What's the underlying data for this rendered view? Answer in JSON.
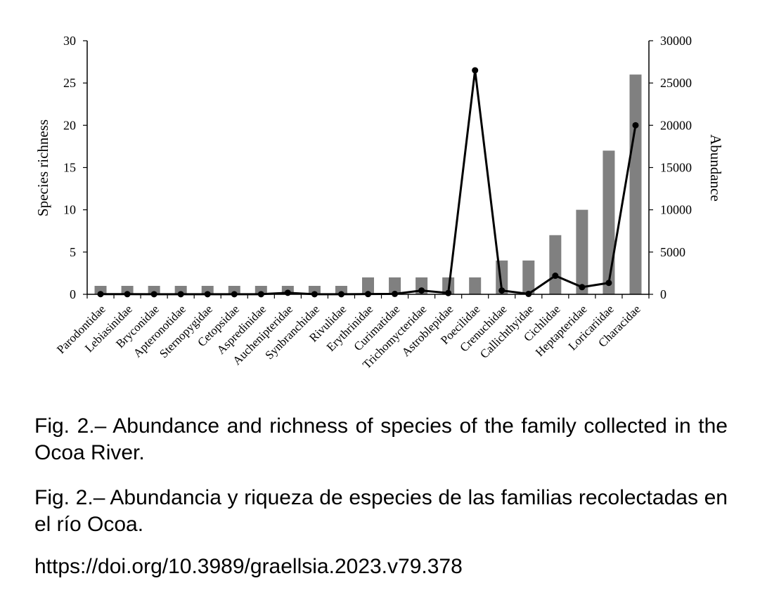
{
  "chart_data": {
    "type": "bar",
    "categories": [
      "Parodontidae",
      "Lebiasinidae",
      "Bryconidae",
      "Apteronotidae",
      "Sternopygidae",
      "Cetopsidae",
      "Aspredinidae",
      "Auchenipteridae",
      "Synbranchidae",
      "Rivulidae",
      "Erythrinidae",
      "Curimatidae",
      "Trichomycteridae",
      "Astroblepidae",
      "Poecilidae",
      "Crenuchidae",
      "Callichthyidae",
      "Cichlidae",
      "Heptapteridae",
      "Loricariidae",
      "Characidae"
    ],
    "series": [
      {
        "name": "",
        "type": "bar",
        "axis": "left",
        "color": "#808080",
        "values": [
          1,
          1,
          1,
          1,
          1,
          1,
          1,
          1,
          1,
          1,
          2,
          2,
          2,
          2,
          2,
          4,
          4,
          7,
          10,
          17,
          26
        ]
      },
      {
        "name": "",
        "type": "line",
        "axis": "right",
        "color": "#000000",
        "values": [
          25,
          20,
          15,
          15,
          15,
          10,
          15,
          180,
          15,
          10,
          30,
          50,
          450,
          150,
          26500,
          450,
          50,
          2200,
          850,
          1350,
          20000
        ]
      }
    ],
    "ylabel": "Species richness",
    "ylabel_right": "Abundance",
    "ylim": [
      0,
      30
    ],
    "yticks": [
      "0",
      "5",
      "10",
      "15",
      "20",
      "25",
      "30"
    ],
    "ylim_right": [
      0,
      30000
    ],
    "yticks_right": [
      "0",
      "5000",
      "10000",
      "15000",
      "20000",
      "25000",
      "30000"
    ],
    "grid": false,
    "legend": "none"
  },
  "captions": {
    "english": "Fig. 2.– Abundance and richness of species of the family collected in the Ocoa River.",
    "spanish": "Fig. 2.– Abundancia y riqueza de especies de las familias recolectadas en el río Ocoa.",
    "doi": "https://doi.org/10.3989/graellsia.2023.v79.378"
  }
}
